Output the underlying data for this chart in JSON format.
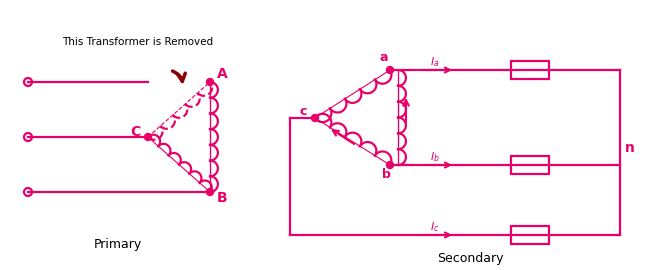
{
  "color": "#E8006A",
  "color_dark": "#8B0000",
  "bg_color": "#ffffff",
  "title_primary": "Primary",
  "title_secondary": "Secondary",
  "annotation_text": "This Transformer is Removed",
  "font_color": "#000000",
  "label_color": "#E8006A",
  "figsize": [
    6.51,
    2.7
  ],
  "dpi": 100
}
